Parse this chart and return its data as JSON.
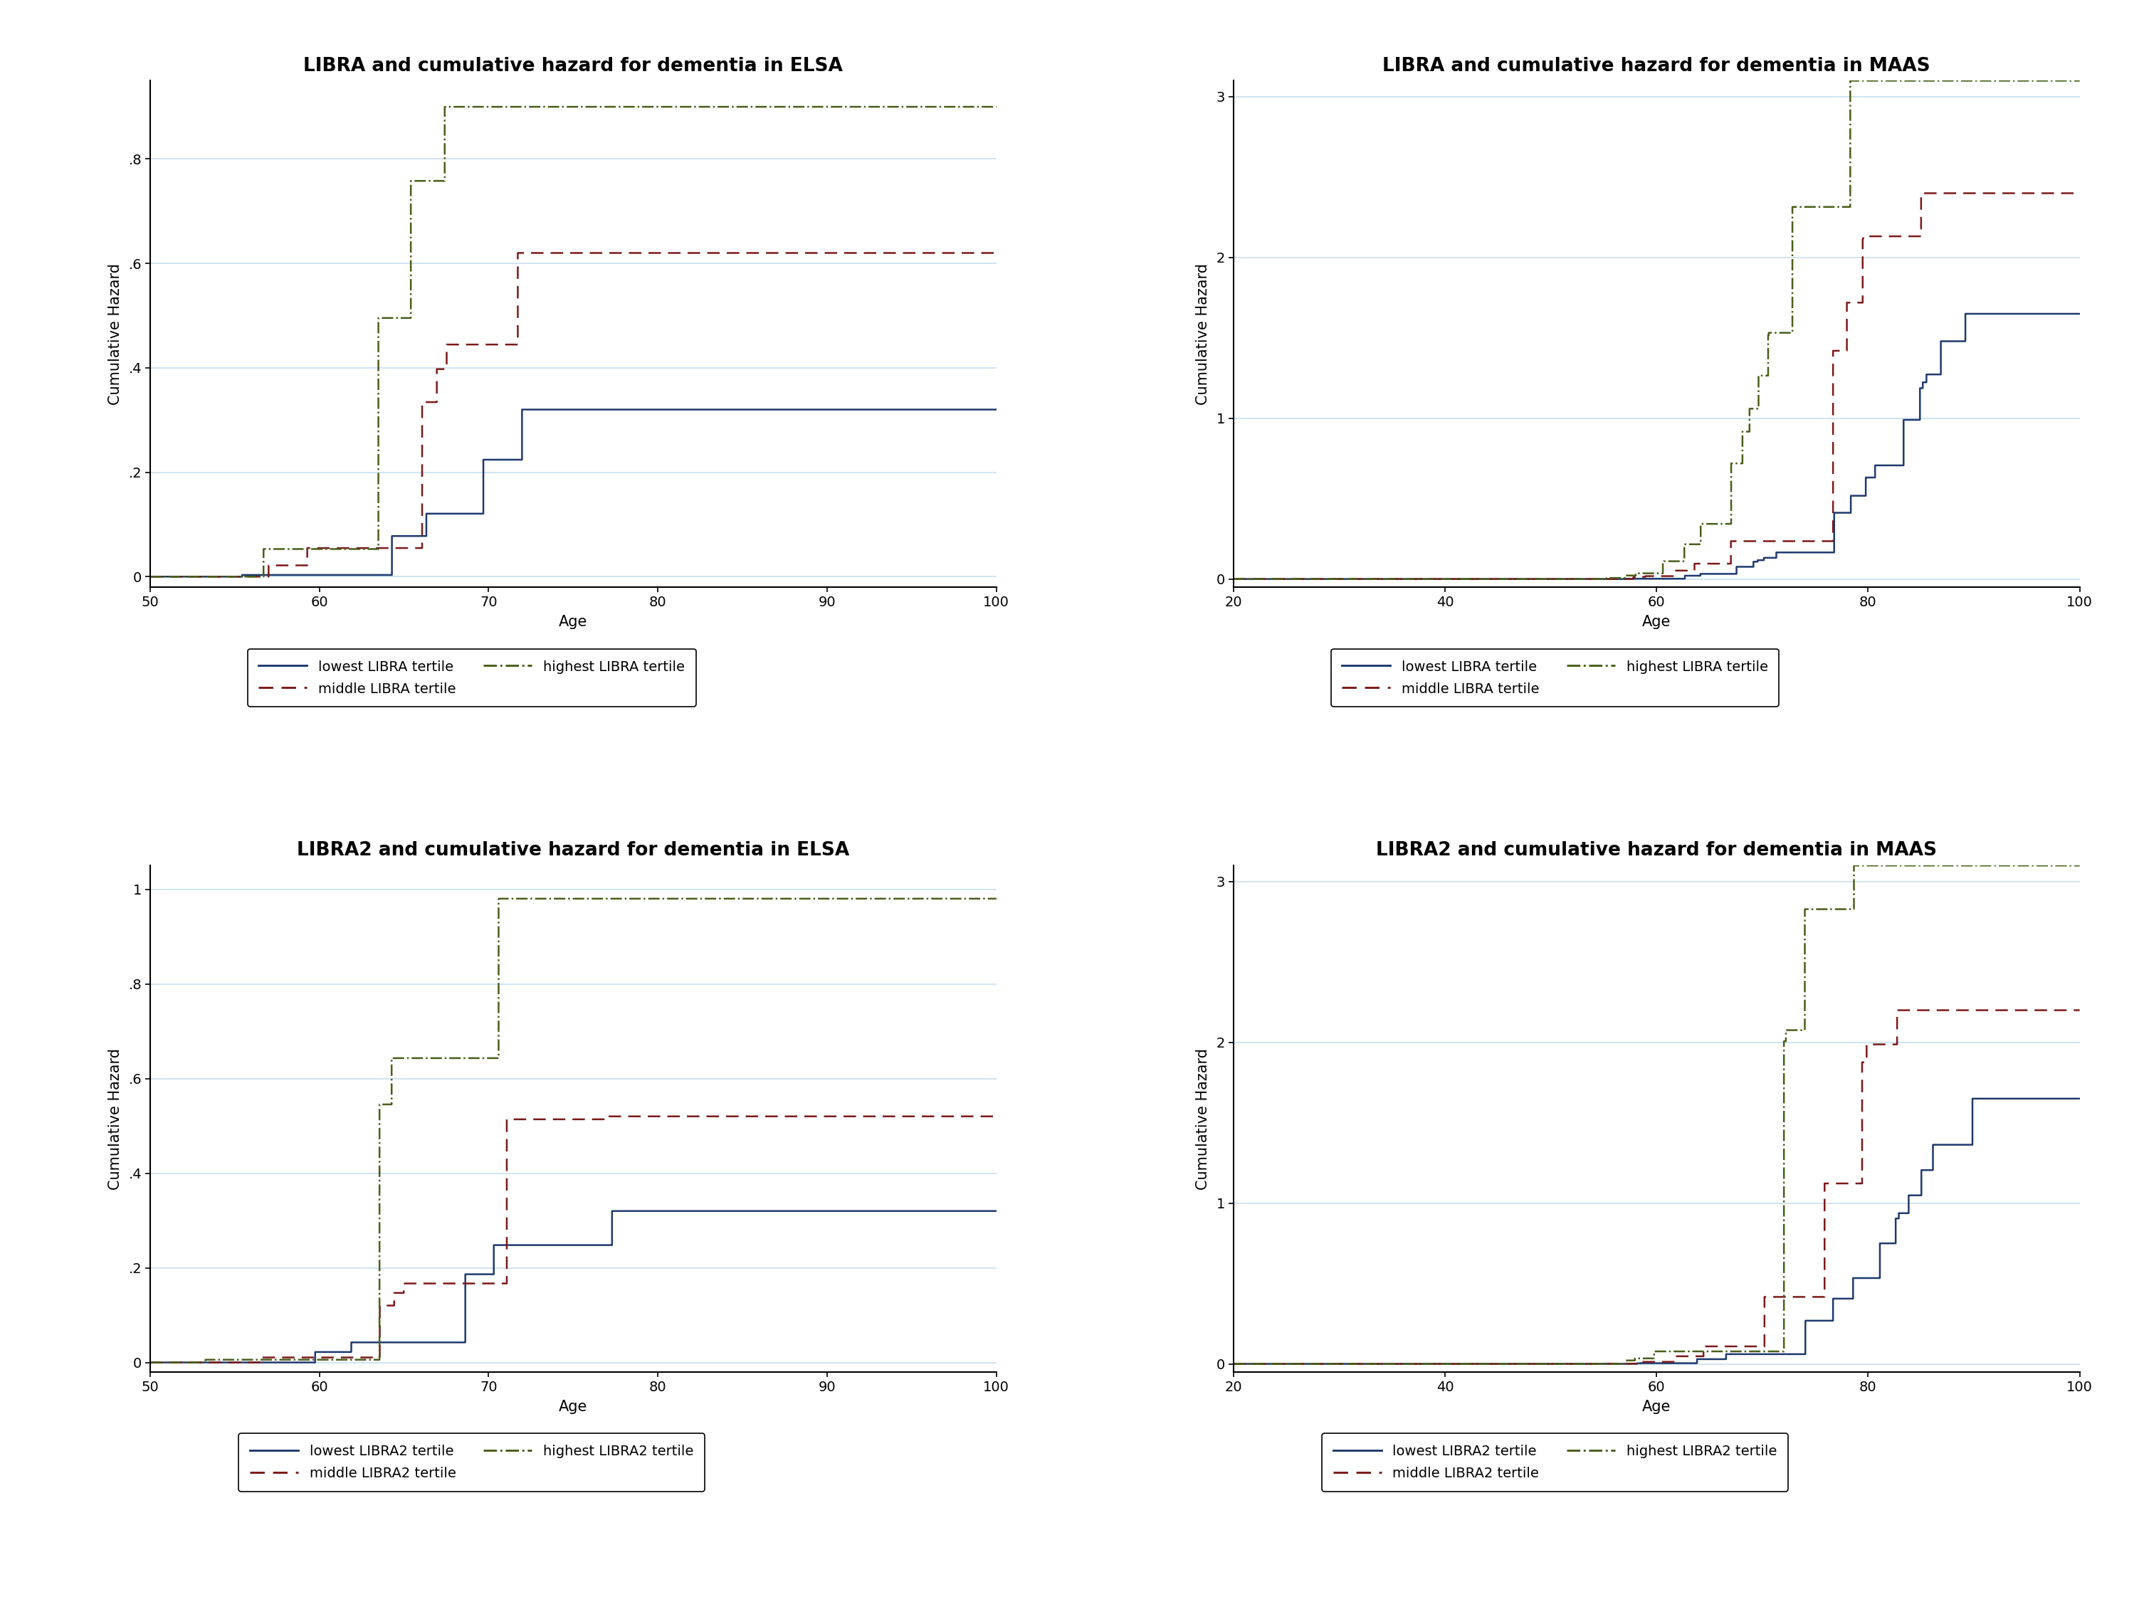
{
  "panels": [
    {
      "title": "LIBRA and cumulative hazard for dementia in ELSA",
      "xlabel": "Age",
      "ylabel": "Cumulative Hazard",
      "xlim": [
        50,
        100
      ],
      "ylim": [
        -0.02,
        0.95
      ],
      "yticks": [
        0,
        0.2,
        0.4,
        0.6,
        0.8
      ],
      "yticklabels": [
        "0",
        ".2",
        ".4",
        ".6",
        ".8"
      ],
      "xticks": [
        50,
        60,
        70,
        80,
        90,
        100
      ],
      "legend_labels": [
        "lowest LIBRA tertile",
        "middle LIBRA tertile",
        "highest LIBRA tertile"
      ],
      "colors": [
        "#1f3a6e",
        "#7b1a1a",
        "#4a5e1a"
      ],
      "linestyles": [
        "-",
        "--",
        "-."
      ]
    },
    {
      "title": "LIBRA and cumulative hazard for dementia in MAAS",
      "xlabel": "Age",
      "ylabel": "Cumulative Hazard",
      "xlim": [
        20,
        100
      ],
      "ylim": [
        -0.05,
        3.1
      ],
      "yticks": [
        0,
        1,
        2,
        3
      ],
      "yticklabels": [
        "0",
        "1",
        "2",
        "3"
      ],
      "xticks": [
        20,
        40,
        60,
        80,
        100
      ],
      "legend_labels": [
        "lowest LIBRA tertile",
        "middle LIBRA tertile",
        "highest LIBRA tertile"
      ],
      "colors": [
        "#1f3a6e",
        "#7b1a1a",
        "#4a5e1a"
      ],
      "linestyles": [
        "-",
        "--",
        "-."
      ]
    },
    {
      "title": "LIBRA2 and cumulative hazard for dementia in ELSA",
      "xlabel": "Age",
      "ylabel": "Cumulative Hazard",
      "xlim": [
        50,
        100
      ],
      "ylim": [
        -0.02,
        1.05
      ],
      "yticks": [
        0,
        0.2,
        0.4,
        0.6,
        0.8,
        1.0
      ],
      "yticklabels": [
        "0",
        ".2",
        ".4",
        ".6",
        ".8",
        "1"
      ],
      "xticks": [
        50,
        60,
        70,
        80,
        90,
        100
      ],
      "legend_labels": [
        "lowest LIBRA2 tertile",
        "middle LIBRA2 tertile",
        "highest LIBRA2 tertile"
      ],
      "colors": [
        "#1f3a6e",
        "#7b1a1a",
        "#4a5e1a"
      ],
      "linestyles": [
        "-",
        "--",
        "-."
      ]
    },
    {
      "title": "LIBRA2 and cumulative hazard for dementia in MAAS",
      "xlabel": "Age",
      "ylabel": "Cumulative Hazard",
      "xlim": [
        20,
        100
      ],
      "ylim": [
        -0.05,
        3.1
      ],
      "yticks": [
        0,
        1,
        2,
        3
      ],
      "yticklabels": [
        "0",
        "1",
        "2",
        "3"
      ],
      "xticks": [
        20,
        40,
        60,
        80,
        100
      ],
      "legend_labels": [
        "lowest LIBRA2 tertile",
        "middle LIBRA2 tertile",
        "highest LIBRA2 tertile"
      ],
      "colors": [
        "#1f3a6e",
        "#7b1a1a",
        "#4a5e1a"
      ],
      "linestyles": [
        "-",
        "--",
        "-."
      ]
    }
  ],
  "background_color": "#ffffff",
  "grid_color": "#c8dff0",
  "title_fontsize": 19,
  "label_fontsize": 15,
  "tick_fontsize": 14,
  "legend_fontsize": 14,
  "linewidth": 1.8
}
